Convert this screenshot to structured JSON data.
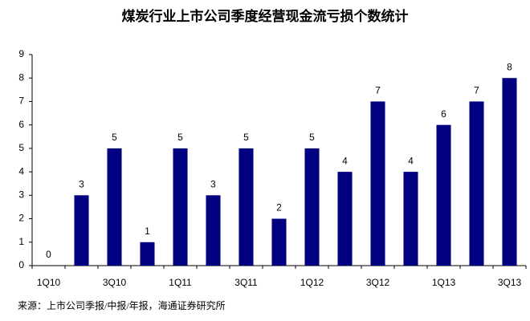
{
  "chart_data": {
    "type": "bar",
    "title": "煤炭行业上市公司季度经营现金流亏损个数统计",
    "categories": [
      "1Q10",
      null,
      "3Q10",
      null,
      "1Q11",
      null,
      "3Q11",
      null,
      "1Q12",
      null,
      "3Q12",
      null,
      "1Q13",
      null,
      "3Q13"
    ],
    "values": [
      0,
      3,
      5,
      1,
      5,
      3,
      5,
      2,
      5,
      4,
      7,
      4,
      6,
      7,
      8
    ],
    "color": "#000080",
    "ylim": [
      0,
      9
    ],
    "yticks": [
      0,
      1,
      2,
      3,
      4,
      5,
      6,
      7,
      8,
      9
    ],
    "grid": false,
    "source": "来源：上市公司季报/中报/年报，海通证券研究所"
  }
}
